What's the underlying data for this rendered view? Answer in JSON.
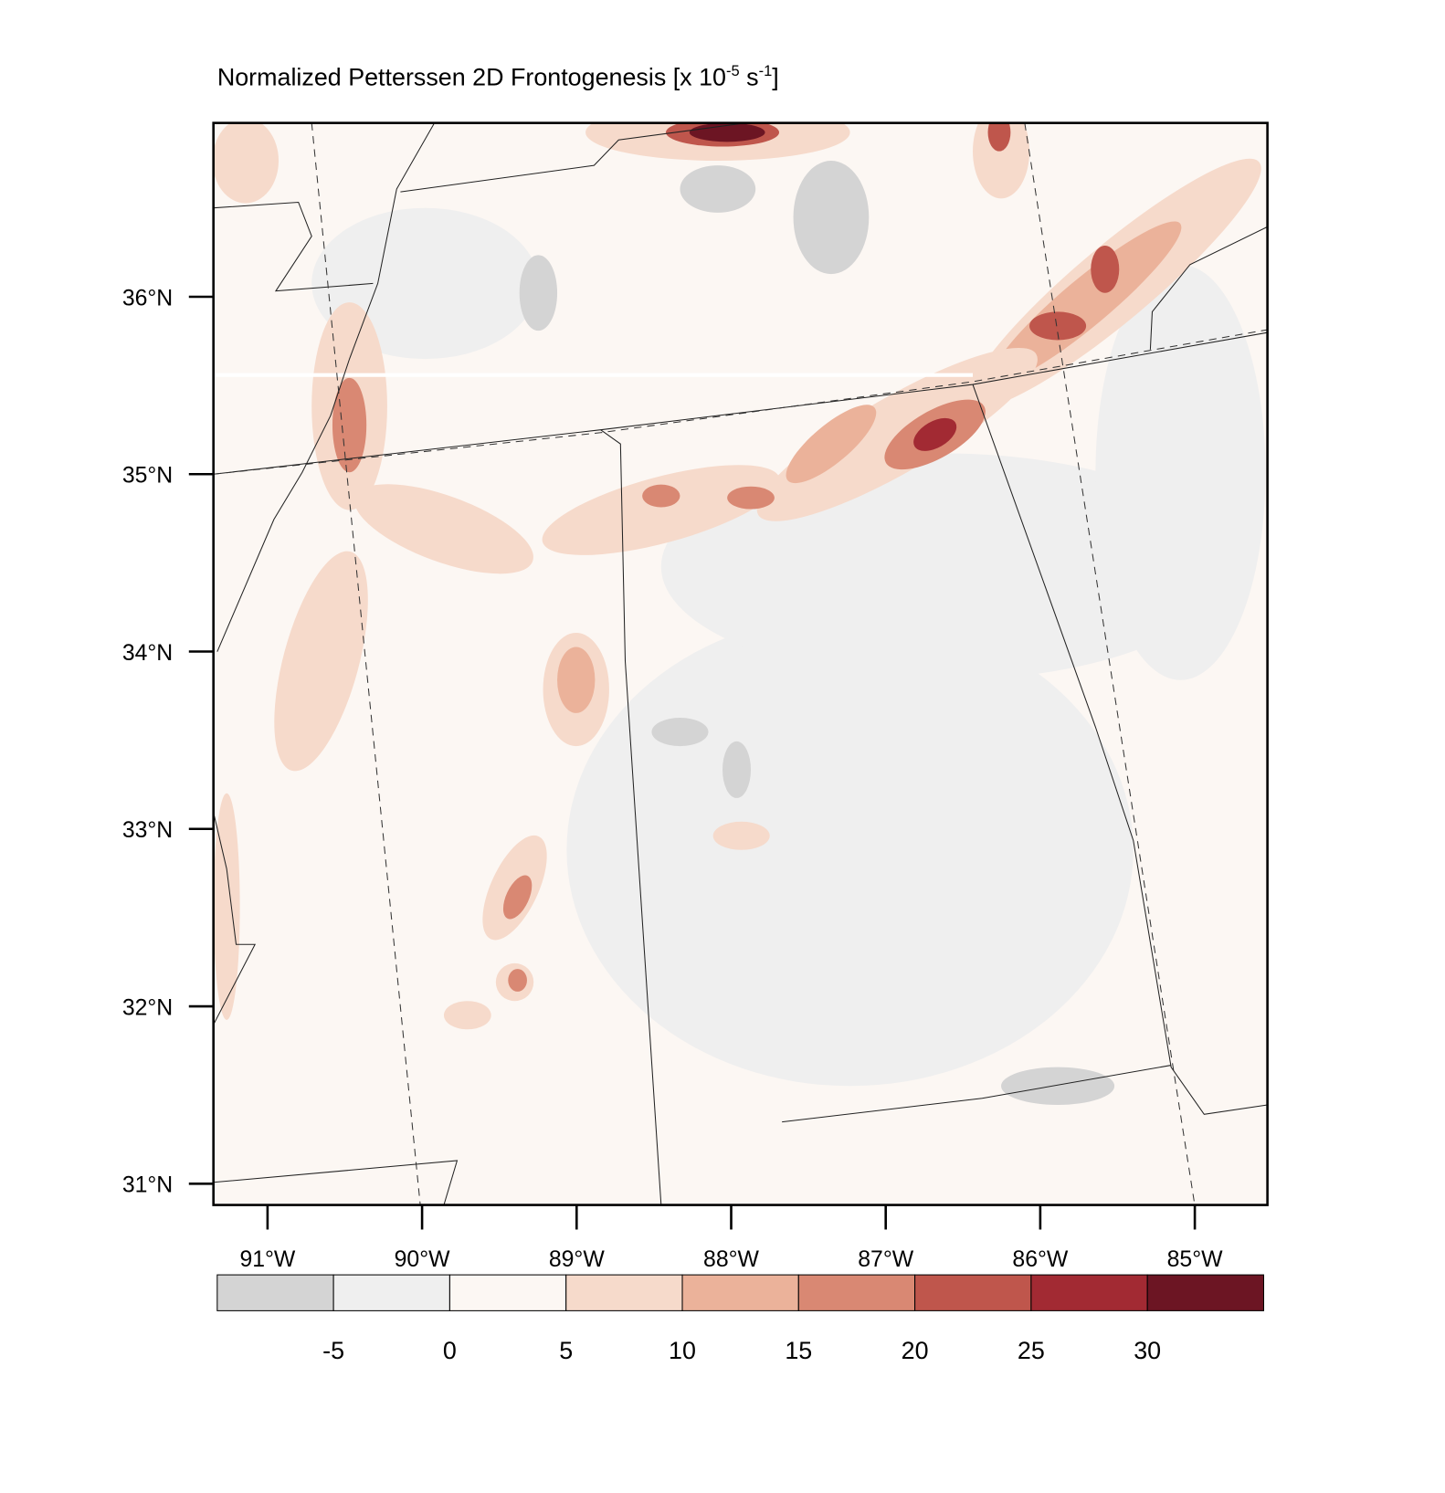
{
  "chart_data": {
    "type": "contour-map",
    "title": {
      "text": "Normalized Petterssen 2D Frontogenesis [x 10",
      "exp1": "-5",
      "unit": " s",
      "exp2": "-1",
      "close": "]"
    },
    "xlim": [
      -91.35,
      -84.53
    ],
    "ylim": [
      30.88,
      36.98
    ],
    "xticks": [
      {
        "value": -91,
        "label": "91°W"
      },
      {
        "value": -90,
        "label": "90°W"
      },
      {
        "value": -89,
        "label": "89°W"
      },
      {
        "value": -88,
        "label": "88°W"
      },
      {
        "value": -87,
        "label": "87°W"
      },
      {
        "value": -86,
        "label": "86°W"
      },
      {
        "value": -85,
        "label": "85°W"
      }
    ],
    "yticks": [
      {
        "value": 31,
        "label": "31°N"
      },
      {
        "value": 32,
        "label": "32°N"
      },
      {
        "value": 33,
        "label": "33°N"
      },
      {
        "value": 34,
        "label": "34°N"
      },
      {
        "value": 35,
        "label": "35°N"
      },
      {
        "value": 36,
        "label": "36°N"
      }
    ],
    "colorbar": {
      "levels": [
        -5,
        0,
        5,
        10,
        15,
        20,
        25,
        30
      ],
      "colors": [
        "#d4d4d4",
        "#efefef",
        "#fcf7f3",
        "#f6dacb",
        "#ebb29a",
        "#d98873",
        "#bf564c",
        "#a22a33",
        "#6c1523"
      ]
    }
  }
}
